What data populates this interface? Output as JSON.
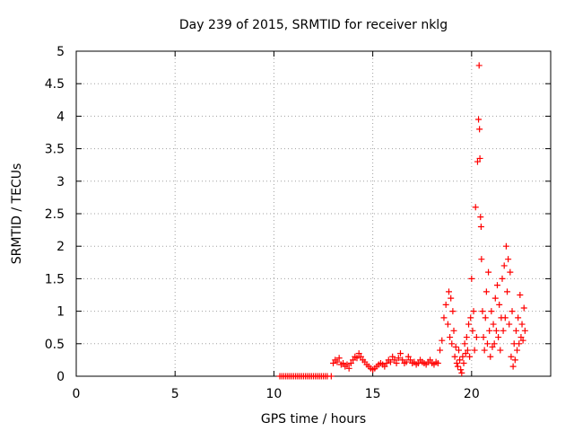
{
  "chart_data": {
    "type": "scatter",
    "title": "Day 239 of 2015, SRMTID for receiver nklg",
    "xlabel": "GPS time / hours",
    "ylabel": "SRMTID / TECUs",
    "xlim": [
      0,
      24
    ],
    "ylim": [
      0,
      5
    ],
    "xticks": [
      0,
      5,
      10,
      15,
      20
    ],
    "xtick_labels": [
      "0",
      "5",
      "10",
      "15",
      "20"
    ],
    "yticks": [
      0,
      0.5,
      1,
      1.5,
      2,
      2.5,
      3,
      3.5,
      4,
      4.5,
      5
    ],
    "ytick_labels": [
      "0",
      "0.5",
      "1",
      "1.5",
      "2",
      "2.5",
      "3",
      "3.5",
      "4",
      "4.5",
      "5"
    ],
    "grid": true,
    "legend": "none",
    "marker": "+",
    "series": [
      {
        "name": "SRMTID",
        "color": "#ff0000",
        "x": [
          10.3,
          10.4,
          10.5,
          10.6,
          10.7,
          10.8,
          10.9,
          11.0,
          11.1,
          11.2,
          11.3,
          11.4,
          11.5,
          11.6,
          11.7,
          11.8,
          11.9,
          12.0,
          12.1,
          12.2,
          12.3,
          12.4,
          12.5,
          12.6,
          12.7,
          12.9,
          13.0,
          13.1,
          13.2,
          13.3,
          13.4,
          13.5,
          13.6,
          13.7,
          13.8,
          13.9,
          14.0,
          14.1,
          14.2,
          14.3,
          14.4,
          14.5,
          14.6,
          14.7,
          14.8,
          14.9,
          15.0,
          15.1,
          15.2,
          15.3,
          15.4,
          15.5,
          15.6,
          15.7,
          15.8,
          15.9,
          16.0,
          16.1,
          16.2,
          16.3,
          16.4,
          16.5,
          16.6,
          16.7,
          16.8,
          16.9,
          17.0,
          17.1,
          17.2,
          17.3,
          17.4,
          17.5,
          17.6,
          17.7,
          17.8,
          17.9,
          18.0,
          18.1,
          18.2,
          18.3,
          18.4,
          18.5,
          18.6,
          18.7,
          18.8,
          18.85,
          18.9,
          18.95,
          19.0,
          19.05,
          19.1,
          19.15,
          19.2,
          19.25,
          19.3,
          19.35,
          19.4,
          19.45,
          19.5,
          19.55,
          19.6,
          19.65,
          19.7,
          19.75,
          19.8,
          19.85,
          19.9,
          19.95,
          20.0,
          20.05,
          20.1,
          20.15,
          20.2,
          20.25,
          20.3,
          20.35,
          20.38,
          20.4,
          20.42,
          20.45,
          20.48,
          20.5,
          20.55,
          20.6,
          20.65,
          20.7,
          20.75,
          20.8,
          20.85,
          20.9,
          20.95,
          21.0,
          21.05,
          21.1,
          21.15,
          21.2,
          21.25,
          21.3,
          21.35,
          21.4,
          21.45,
          21.5,
          21.55,
          21.6,
          21.65,
          21.7,
          21.75,
          21.8,
          21.85,
          21.9,
          21.95,
          22.0,
          22.05,
          22.1,
          22.15,
          22.2,
          22.25,
          22.3,
          22.35,
          22.4,
          22.45,
          22.5,
          22.55,
          22.6,
          22.65,
          22.7
        ],
        "y": [
          0,
          0,
          0,
          0,
          0,
          0,
          0,
          0,
          0,
          0,
          0,
          0,
          0,
          0,
          0,
          0,
          0,
          0,
          0,
          0,
          0,
          0,
          0,
          0,
          0,
          0,
          0.2,
          0.25,
          0.22,
          0.28,
          0.18,
          0.2,
          0.15,
          0.18,
          0.12,
          0.2,
          0.25,
          0.3,
          0.28,
          0.35,
          0.3,
          0.25,
          0.22,
          0.18,
          0.15,
          0.12,
          0.1,
          0.12,
          0.15,
          0.18,
          0.2,
          0.18,
          0.15,
          0.2,
          0.25,
          0.22,
          0.3,
          0.25,
          0.2,
          0.28,
          0.35,
          0.25,
          0.2,
          0.22,
          0.3,
          0.25,
          0.2,
          0.22,
          0.18,
          0.2,
          0.25,
          0.22,
          0.2,
          0.18,
          0.22,
          0.25,
          0.2,
          0.18,
          0.22,
          0.2,
          0.4,
          0.55,
          0.9,
          1.1,
          0.8,
          1.3,
          0.6,
          1.2,
          0.5,
          1.0,
          0.7,
          0.3,
          0.45,
          0.2,
          0.15,
          0.4,
          0.25,
          0.1,
          0.05,
          0.3,
          0.2,
          0.5,
          0.35,
          0.6,
          0.4,
          0.8,
          0.3,
          0.9,
          1.5,
          0.7,
          1.0,
          0.4,
          2.6,
          0.6,
          3.3,
          3.95,
          4.78,
          3.8,
          3.35,
          2.45,
          2.3,
          1.8,
          1.0,
          0.6,
          0.4,
          0.9,
          1.3,
          0.5,
          1.6,
          0.7,
          0.3,
          1.0,
          0.45,
          0.8,
          0.5,
          1.2,
          0.7,
          1.4,
          0.6,
          1.1,
          0.4,
          0.9,
          1.5,
          0.7,
          1.7,
          0.9,
          2.0,
          1.3,
          1.8,
          0.8,
          1.6,
          0.3,
          1.0,
          0.15,
          0.5,
          0.25,
          0.7,
          0.4,
          0.9,
          0.5,
          1.25,
          0.6,
          0.8,
          0.55,
          1.05,
          0.7
        ]
      }
    ]
  }
}
